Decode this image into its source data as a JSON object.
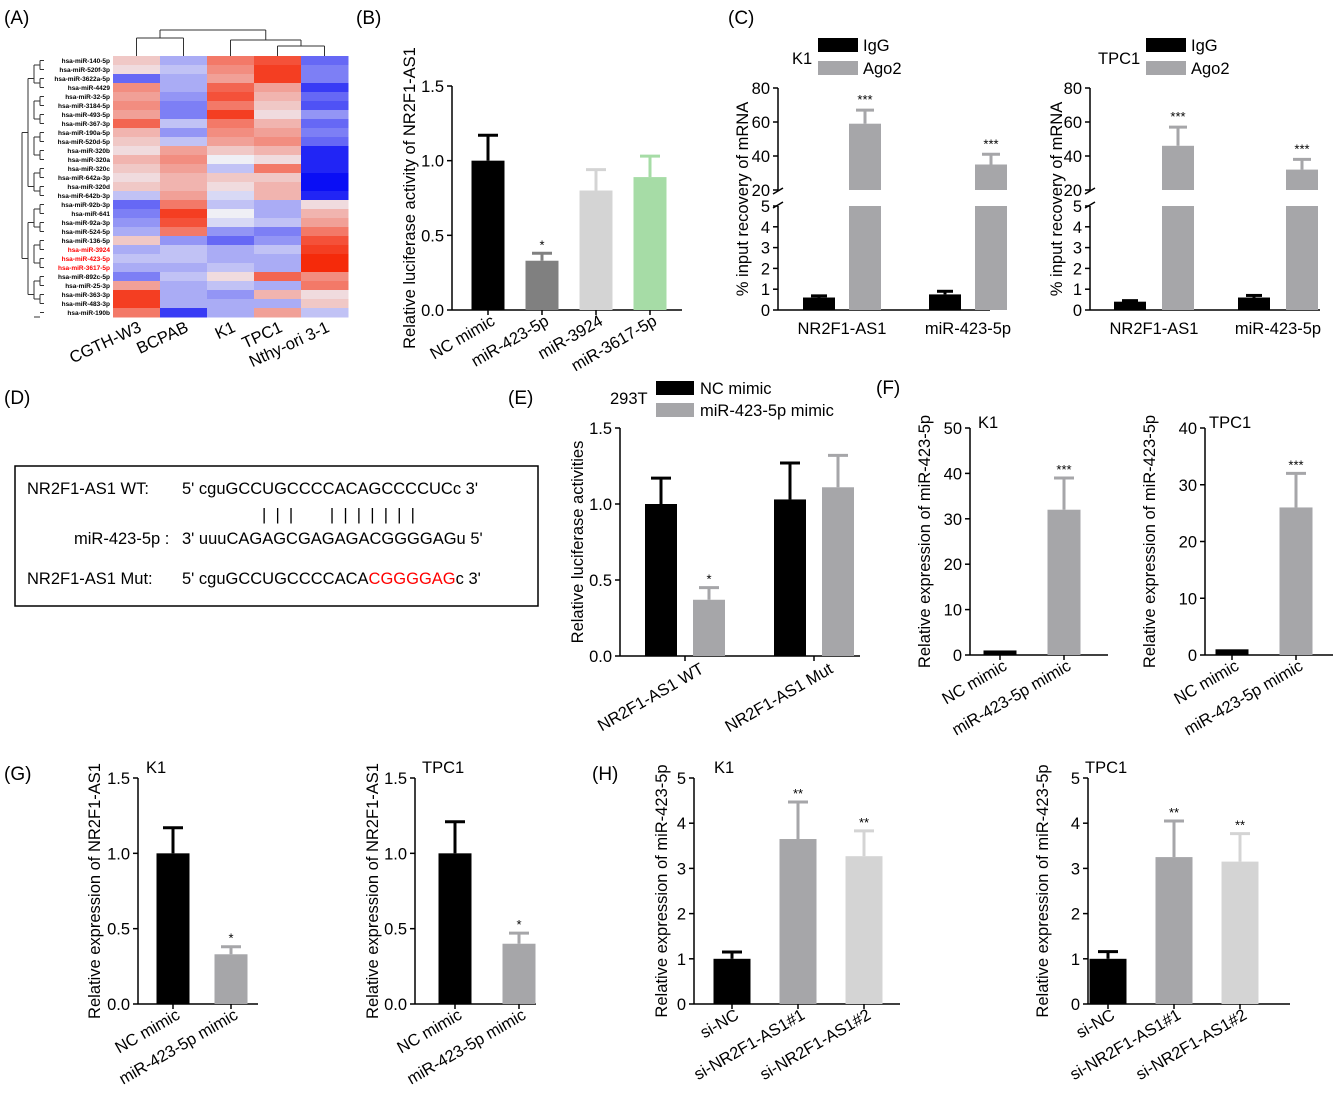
{
  "panels": {
    "A": "(A)",
    "B": "(B)",
    "C": "(C)",
    "D": "(D)",
    "E": "(E)",
    "F": "(F)",
    "G": "(G)",
    "H": "(H)"
  },
  "colors": {
    "black": "#000000",
    "dark_gray": "#808080",
    "gray": "#a6a6a9",
    "light_gray": "#d4d4d4",
    "light_green": "#a6dca6",
    "mut_red": "#ff0000",
    "heat_low": "#0a0ef5",
    "heat_mid": "#efeff5",
    "heat_high": "#f52a0a"
  },
  "heatmap": {
    "rows": [
      "hsa-miR-140-5p",
      "hsa-miR-520f-3p",
      "hsa-miR-3622a-5p",
      "hsa-miR-4429",
      "hsa-miR-32-5p",
      "hsa-miR-3184-5p",
      "hsa-miR-493-5p",
      "hsa-miR-367-3p",
      "hsa-miR-190a-5p",
      "hsa-miR-520d-5p",
      "hsa-miR-320b",
      "hsa-miR-320a",
      "hsa-miR-320c",
      "hsa-miR-642a-3p",
      "hsa-miR-320d",
      "hsa-miR-642b-3p",
      "hsa-miR-92b-3p",
      "hsa-miR-641",
      "hsa-miR-92a-3p",
      "hsa-miR-524-5p",
      "hsa-miR-136-5p",
      "hsa-miR-3924",
      "hsa-miR-423-5p",
      "hsa-miR-3617-5p",
      "hsa-miR-892c-5p",
      "hsa-miR-25-3p",
      "hsa-miR-363-3p",
      "hsa-miR-483-3p",
      "hsa-miR-190b"
    ],
    "highlighted_rows": [
      "hsa-miR-3924",
      "hsa-miR-423-5p",
      "hsa-miR-3617-5p"
    ],
    "columns": [
      "CGTH-W3",
      "BCPAB",
      "K1",
      "TPC1",
      "Nthy-ori 3-1"
    ],
    "values": [
      [
        0.2,
        -0.3,
        0.6,
        0.8,
        -0.6
      ],
      [
        0.1,
        -0.2,
        0.5,
        0.9,
        -0.5
      ],
      [
        -0.6,
        -0.3,
        0.4,
        0.9,
        -0.5
      ],
      [
        0.5,
        -0.3,
        0.7,
        0.4,
        -0.8
      ],
      [
        0.4,
        -0.4,
        0.8,
        0.3,
        -0.6
      ],
      [
        0.5,
        -0.5,
        0.6,
        0.2,
        -0.7
      ],
      [
        0.4,
        -0.5,
        0.9,
        0.1,
        -0.4
      ],
      [
        0.7,
        -0.2,
        0.6,
        0.3,
        -0.6
      ],
      [
        0.3,
        -0.4,
        0.5,
        0.4,
        -0.5
      ],
      [
        0.2,
        -0.2,
        0.4,
        0.5,
        -0.6
      ],
      [
        0.1,
        0.4,
        0.2,
        0.3,
        -0.9
      ],
      [
        0.3,
        0.5,
        0.0,
        0.1,
        -0.9
      ],
      [
        0.2,
        0.4,
        -0.2,
        0.6,
        -0.9
      ],
      [
        0.1,
        0.3,
        0.2,
        0.2,
        -1.0
      ],
      [
        0.2,
        0.3,
        0.1,
        0.3,
        -1.0
      ],
      [
        -0.2,
        0.4,
        -0.1,
        0.3,
        -0.9
      ],
      [
        -0.6,
        0.6,
        -0.2,
        -0.3,
        0.1
      ],
      [
        -0.5,
        0.9,
        0.0,
        -0.3,
        0.3
      ],
      [
        -0.4,
        0.8,
        -0.1,
        -0.2,
        0.4
      ],
      [
        -0.3,
        0.6,
        -0.4,
        -0.5,
        0.6
      ],
      [
        0.2,
        -0.4,
        -0.6,
        -0.4,
        0.8
      ],
      [
        -0.3,
        -0.2,
        -0.3,
        -0.2,
        0.9
      ],
      [
        -0.2,
        -0.2,
        -0.3,
        -0.3,
        1.0
      ],
      [
        -0.3,
        -0.3,
        -0.2,
        -0.3,
        1.0
      ],
      [
        -0.5,
        -0.2,
        0.1,
        0.7,
        0.5
      ],
      [
        0.4,
        -0.3,
        -0.2,
        -0.3,
        0.6
      ],
      [
        0.9,
        -0.3,
        -0.4,
        0.3,
        0.1
      ],
      [
        0.9,
        -0.3,
        -0.3,
        -0.3,
        0.2
      ],
      [
        0.6,
        -0.8,
        -0.3,
        0.4,
        -0.2
      ]
    ]
  },
  "chart_data": [
    {
      "id": "B",
      "type": "bar",
      "ylabel": "Relative luciferase activity of NR2F1-AS1",
      "ylim": [
        0,
        1.5
      ],
      "yticks": [
        "0.0",
        "0.5",
        "1.0",
        "1.5"
      ],
      "categories": [
        "NC mimic",
        "miR-423-5p",
        "miR-3924",
        "miR-3617-5p"
      ],
      "values": [
        1.0,
        0.33,
        0.8,
        0.89
      ],
      "errors": [
        0.17,
        0.05,
        0.14,
        0.14
      ],
      "colors": [
        "#000000",
        "#808080",
        "#d4d4d4",
        "#a6dca6"
      ],
      "significance": [
        "",
        "*",
        "",
        ""
      ]
    },
    {
      "id": "C1",
      "type": "bar",
      "title": "K1",
      "ylabel": "% input recovery of mRNA",
      "lower_ticks": [
        "0",
        "1",
        "2",
        "3",
        "4",
        "5"
      ],
      "upper_ticks": [
        "20",
        "40",
        "60",
        "80"
      ],
      "categories": [
        "NR2F1-AS1",
        "miR-423-5p"
      ],
      "series": [
        {
          "name": "IgG",
          "values": [
            0.6,
            0.75
          ],
          "errors": [
            0.08,
            0.15
          ]
        },
        {
          "name": "Ago2",
          "values": [
            59,
            35
          ],
          "errors": [
            8,
            6
          ]
        }
      ],
      "significance": [
        "***",
        "***"
      ]
    },
    {
      "id": "C2",
      "type": "bar",
      "title": "TPC1",
      "ylabel": "% input recovery of mRNA",
      "lower_ticks": [
        "0",
        "1",
        "2",
        "3",
        "4",
        "5"
      ],
      "upper_ticks": [
        "20",
        "40",
        "60",
        "80"
      ],
      "categories": [
        "NR2F1-AS1",
        "miR-423-5p"
      ],
      "series": [
        {
          "name": "IgG",
          "values": [
            0.4,
            0.6
          ],
          "errors": [
            0.05,
            0.1
          ]
        },
        {
          "name": "Ago2",
          "values": [
            46,
            32
          ],
          "errors": [
            11,
            6
          ]
        }
      ],
      "significance": [
        "***",
        "***"
      ]
    },
    {
      "id": "E",
      "type": "bar",
      "title": "293T",
      "ylabel": "Relative luciferase activities",
      "ylim": [
        0,
        1.5
      ],
      "yticks": [
        "0.0",
        "0.5",
        "1.0",
        "1.5"
      ],
      "categories": [
        "NR2F1-AS1 WT",
        "NR2F1-AS1 Mut"
      ],
      "series": [
        {
          "name": "NC mimic",
          "values": [
            1.0,
            1.03
          ],
          "errors": [
            0.17,
            0.24
          ]
        },
        {
          "name": "miR-423-5p mimic",
          "values": [
            0.37,
            1.11
          ],
          "errors": [
            0.08,
            0.21
          ]
        }
      ],
      "significance": [
        "*",
        ""
      ]
    },
    {
      "id": "F1",
      "type": "bar",
      "title": "K1",
      "ylabel": "Relative expression of miR-423-5p",
      "ylim": [
        0,
        50
      ],
      "yticks": [
        "0",
        "10",
        "20",
        "30",
        "40",
        "50"
      ],
      "categories": [
        "NC mimic",
        "miR-423-5p mimic"
      ],
      "values": [
        1.0,
        32
      ],
      "errors": [
        0,
        7
      ],
      "colors": [
        "#000000",
        "#a6a6a9"
      ],
      "significance": [
        "",
        "***"
      ]
    },
    {
      "id": "F2",
      "type": "bar",
      "title": "TPC1",
      "ylabel": "Relative expression of miR-423-5p",
      "ylim": [
        0,
        40
      ],
      "yticks": [
        "0",
        "10",
        "20",
        "30",
        "40"
      ],
      "categories": [
        "NC mimic",
        "miR-423-5p mimic"
      ],
      "values": [
        1.0,
        26
      ],
      "errors": [
        0,
        6
      ],
      "colors": [
        "#000000",
        "#a6a6a9"
      ],
      "significance": [
        "",
        "***"
      ]
    },
    {
      "id": "G1",
      "type": "bar",
      "title": "K1",
      "ylabel": "Relative expression of NR2F1-AS1",
      "ylim": [
        0,
        1.5
      ],
      "yticks": [
        "0.0",
        "0.5",
        "1.0",
        "1.5"
      ],
      "categories": [
        "NC mimic",
        "miR-423-5p mimic"
      ],
      "values": [
        1.0,
        0.33
      ],
      "errors": [
        0.17,
        0.05
      ],
      "colors": [
        "#000000",
        "#a6a6a9"
      ],
      "significance": [
        "",
        "*"
      ]
    },
    {
      "id": "G2",
      "type": "bar",
      "title": "TPC1",
      "ylabel": "Relative expression of NR2F1-AS1",
      "ylim": [
        0,
        1.5
      ],
      "yticks": [
        "0.0",
        "0.5",
        "1.0",
        "1.5"
      ],
      "categories": [
        "NC mimic",
        "miR-423-5p mimic"
      ],
      "values": [
        1.0,
        0.4
      ],
      "errors": [
        0.21,
        0.07
      ],
      "colors": [
        "#000000",
        "#a6a6a9"
      ],
      "significance": [
        "",
        "*"
      ]
    },
    {
      "id": "H1",
      "type": "bar",
      "title": "K1",
      "ylabel": "Relative expression of miR-423-5p",
      "ylim": [
        0,
        5
      ],
      "yticks": [
        "0",
        "1",
        "2",
        "3",
        "4",
        "5"
      ],
      "categories": [
        "si-NC",
        "si-NR2F1-AS1#1",
        "si-NR2F1-AS1#2"
      ],
      "values": [
        1.0,
        3.65,
        3.27
      ],
      "errors": [
        0.15,
        0.82,
        0.56
      ],
      "colors": [
        "#000000",
        "#a6a6a9",
        "#d4d4d4"
      ],
      "significance": [
        "",
        "**",
        "**"
      ]
    },
    {
      "id": "H2",
      "type": "bar",
      "title": "TPC1",
      "ylabel": "Relative expression of miR-423-5p",
      "ylim": [
        0,
        5
      ],
      "yticks": [
        "0",
        "1",
        "2",
        "3",
        "4",
        "5"
      ],
      "categories": [
        "si-NC",
        "si-NR2F1-AS1#1",
        "si-NR2F1-AS1#2"
      ],
      "values": [
        1.0,
        3.25,
        3.15
      ],
      "errors": [
        0.16,
        0.8,
        0.62
      ],
      "colors": [
        "#000000",
        "#a6a6a9",
        "#d4d4d4"
      ],
      "significance": [
        "",
        "**",
        "**"
      ]
    }
  ],
  "sequence_box": {
    "wt_label": "NR2F1-AS1 WT:",
    "wt_seq": "5' cguGCCUGCCCCACAGCCCCUCc 3'",
    "mir_label": "miR-423-5p :",
    "mir_seq": "3' uuuCAGAGCGAGAGACGGGGAGu 5'",
    "pair_marks": "|  |  |        |  |  |  |  |  |  |",
    "mut_label": "NR2F1-AS1 Mut:",
    "mut_seq_prefix": "5' cguGCCUGCCCCACA",
    "mut_seq_mutated": "CGGGGAG",
    "mut_seq_suffix": "c 3'"
  }
}
